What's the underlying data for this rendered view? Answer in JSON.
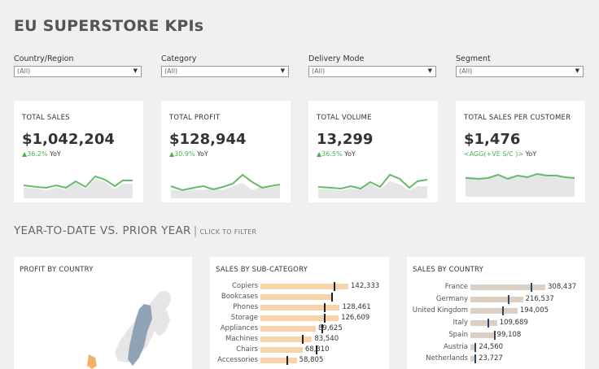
{
  "title": "EU SUPERSTORE KPIs",
  "filters": [
    {
      "label": "Country/Region",
      "value": "(All)"
    },
    {
      "label": "Category",
      "value": "(All)"
    },
    {
      "label": "Delivery Mode",
      "value": "(All)"
    },
    {
      "label": "Segment",
      "value": "(All)"
    }
  ],
  "kpis": [
    {
      "title": "TOTAL SALES",
      "value": "$1,042,204",
      "yoy_pct": "36.2%",
      "yoy_label": "YoY",
      "arrow": "▲"
    },
    {
      "title": "TOTAL PROFIT",
      "value": "$128,944",
      "yoy_pct": "30.9%",
      "yoy_label": "YoY",
      "arrow": "▲"
    },
    {
      "title": "TOTAL VOLUME",
      "value": "13,299",
      "yoy_pct": "36.5%",
      "yoy_label": "YoY",
      "arrow": "▲"
    },
    {
      "title": "TOTAL SALES PER CUSTOMER",
      "value": "$1,476",
      "yoy_pct": "<AGG(+VE S/C )>",
      "yoy_label": "YoY",
      "arrow": ""
    }
  ],
  "section": {
    "title": "YEAR-TO-DATE VS. PRIOR YEAR",
    "sep": "|",
    "hint": "CLICK TO FILTER"
  },
  "panels": {
    "profit_by_country": {
      "title": "PROFIT BY COUNTRY"
    },
    "sales_by_subcategory": {
      "title": "SALES BY SUB-CATEGORY",
      "rows": [
        {
          "label": "Copiers",
          "value": "142,333",
          "current": 142333,
          "prior": 118000
        },
        {
          "label": "Bookcases",
          "value": "",
          "current": 0,
          "prior": 115000
        },
        {
          "label": "Phones",
          "value": "128,461",
          "current": 128461,
          "prior": 103000
        },
        {
          "label": "Storage",
          "value": "126,609",
          "current": 126609,
          "prior": 103000
        },
        {
          "label": "Appliances",
          "value": "89,625",
          "current": 89625,
          "prior": 99000
        },
        {
          "label": "Machines",
          "value": "83,540",
          "current": 83540,
          "prior": 67000
        },
        {
          "label": "Chairs",
          "value": "68,310",
          "current": 68310,
          "prior": 90000
        },
        {
          "label": "Accessories",
          "value": "58,805",
          "current": 58805,
          "prior": 42000
        }
      ]
    },
    "sales_by_country": {
      "title": "SALES BY COUNTRY",
      "rows": [
        {
          "label": "France",
          "value": "308,437",
          "current": 308437,
          "prior": 248000
        },
        {
          "label": "Germany",
          "value": "216,537",
          "current": 216537,
          "prior": 154000
        },
        {
          "label": "United Kingdom",
          "value": "194,005",
          "current": 194005,
          "prior": 130000
        },
        {
          "label": "Italy",
          "value": "109,689",
          "current": 109689,
          "prior": 69000
        },
        {
          "label": "Spain",
          "value": "99,108",
          "current": 99108,
          "prior": 98000
        },
        {
          "label": "Austria",
          "value": "24,560",
          "current": 24560,
          "prior": 18000
        },
        {
          "label": "Netherlands",
          "value": "23,727",
          "current": 23727,
          "prior": 18000
        }
      ]
    }
  },
  "colors": {
    "accent_green": "#66bb6a",
    "sub_bar": "#f6d3a9",
    "country_bar": "#dccfc3",
    "map_blue": "#8fa3b5",
    "map_orange": "#f4b266"
  }
}
